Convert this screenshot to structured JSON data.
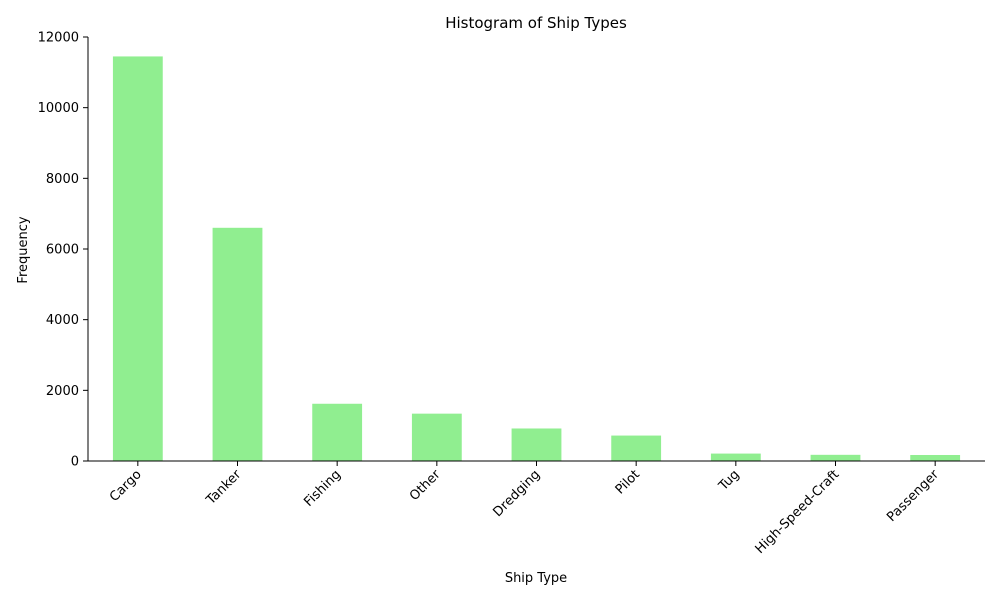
{
  "chart_data": {
    "type": "bar",
    "title": "Histogram of Ship Types",
    "xlabel": "Ship Type",
    "ylabel": "Frequency",
    "categories": [
      "Cargo",
      "Tanker",
      "Fishing",
      "Other",
      "Dredging",
      "Pilot",
      "Tug",
      "High-Speed-Craft",
      "Passenger"
    ],
    "values": [
      11450,
      6600,
      1620,
      1340,
      920,
      720,
      210,
      175,
      170
    ],
    "ylim": [
      0,
      12000
    ],
    "yticks": [
      0,
      2000,
      4000,
      6000,
      8000,
      10000,
      12000
    ],
    "ytick_labels": [
      "0",
      "2000",
      "4000",
      "6000",
      "8000",
      "10000",
      "12000"
    ],
    "bar_color": "#90ee90",
    "grid": false,
    "legend": "none",
    "xtick_rotation": "45 degrees"
  }
}
